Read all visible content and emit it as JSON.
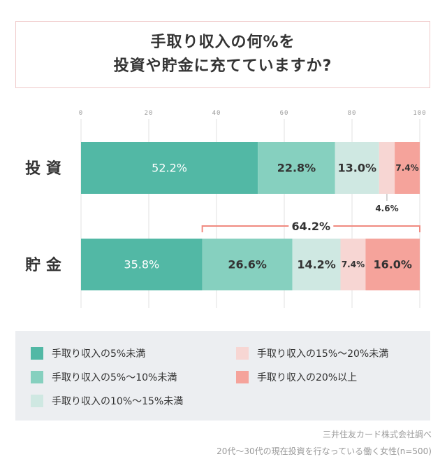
{
  "title": {
    "line1": "手取り収入の何%を",
    "line2": "投資や貯金に充てていますか?"
  },
  "chart_data": {
    "type": "bar",
    "orientation": "horizontal",
    "stacked": true,
    "xlim": [
      0,
      100
    ],
    "x_ticks": [
      "0",
      "20",
      "40",
      "60",
      "80",
      "100"
    ],
    "categories": [
      "投 資",
      "貯 金"
    ],
    "series": [
      {
        "name": "手取り収入の5%未満",
        "values": [
          52.2,
          35.8
        ],
        "labels": [
          "52.2%",
          "35.8%"
        ],
        "color": "#52b8a5"
      },
      {
        "name": "手取り収入の5%〜10%未満",
        "values": [
          22.8,
          26.6
        ],
        "labels": [
          "22.8%",
          "26.6%"
        ],
        "color": "#86d0bf"
      },
      {
        "name": "手取り収入の10%〜15%未満",
        "values": [
          13.0,
          14.2
        ],
        "labels": [
          "13.0%",
          "14.2%"
        ],
        "color": "#cfe8e2"
      },
      {
        "name": "手取り収入の15%〜20%未満",
        "values": [
          4.6,
          7.4
        ],
        "labels": [
          "4.6%",
          "7.4%"
        ],
        "color": "#f7d6d3"
      },
      {
        "name": "手取り収入の20%以上",
        "values": [
          7.4,
          16.0
        ],
        "labels": [
          "7.4%",
          "16.0%"
        ],
        "color": "#f5a39b"
      }
    ],
    "bracket": {
      "label": "64.2%",
      "category": "貯 金",
      "from": 35.8,
      "to": 100
    },
    "grid": true,
    "legend_position": "bottom"
  },
  "colors": {
    "bracket": "#f08a80",
    "grid": "#e2e2e2",
    "title_border": "#efc9c9",
    "legend_bg": "#eceef1"
  },
  "source": {
    "line1": "三井住友カード株式会社調べ",
    "line2": "20代〜30代の現在投資を行なっている働く女性(n=500)"
  }
}
